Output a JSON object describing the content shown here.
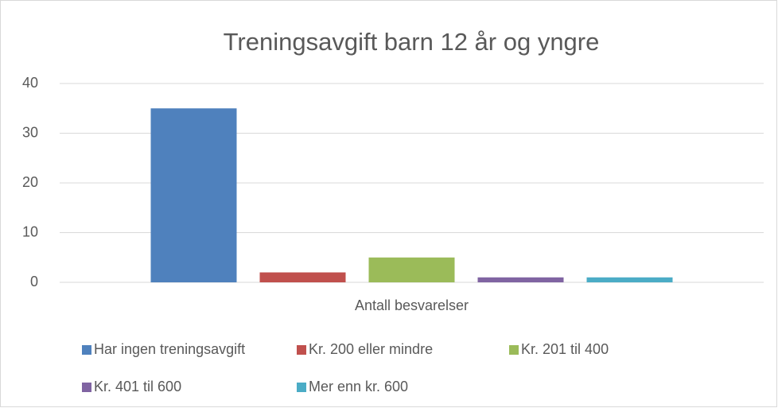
{
  "chart_data": {
    "type": "bar",
    "title": "Treningsavgift barn 12 år og yngre",
    "categories": [
      "Antall besvarelser"
    ],
    "series": [
      {
        "name": "Har ingen treningsavgift",
        "color": "#4f81bd",
        "values": [
          35
        ]
      },
      {
        "name": "Kr. 200 eller mindre",
        "color": "#c0504d",
        "values": [
          2
        ]
      },
      {
        "name": "Kr. 201 til 400",
        "color": "#9bbb59",
        "values": [
          5
        ]
      },
      {
        "name": "Kr. 401 til 600",
        "color": "#8064a2",
        "values": [
          1
        ]
      },
      {
        "name": "Mer enn kr. 600",
        "color": "#4bacc6",
        "values": [
          1
        ]
      }
    ],
    "ylim": [
      0,
      40
    ],
    "yticks": [
      0,
      10,
      20,
      30,
      40
    ],
    "grid": true,
    "legend": "bottom"
  }
}
